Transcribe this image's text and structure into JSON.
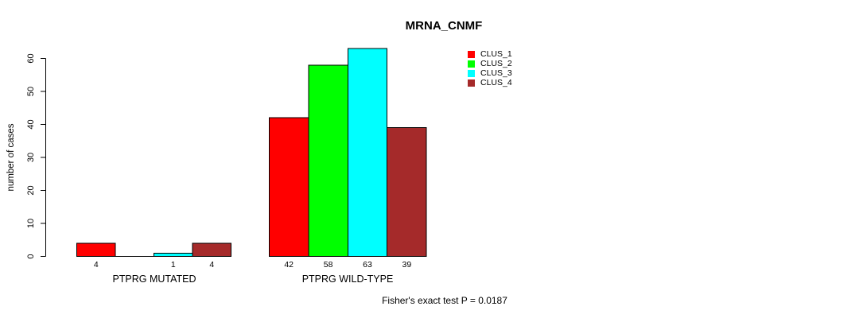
{
  "chart_data": {
    "type": "bar",
    "title": "MRNA_CNMF",
    "ylabel": "number of cases",
    "xlabel": "",
    "ylim": [
      0,
      60
    ],
    "yticks": [
      0,
      10,
      20,
      30,
      40,
      50,
      60
    ],
    "grid": false,
    "categories": [
      "PTPRG MUTATED",
      "PTPRG WILD-TYPE"
    ],
    "series": [
      {
        "name": "CLUS_1",
        "color": "#ff0000",
        "values": [
          4,
          42
        ]
      },
      {
        "name": "CLUS_2",
        "color": "#00ff00",
        "values": [
          0,
          58
        ]
      },
      {
        "name": "CLUS_3",
        "color": "#00ffff",
        "values": [
          1,
          63
        ]
      },
      {
        "name": "CLUS_4",
        "color": "#a52a2a",
        "values": [
          4,
          39
        ]
      }
    ],
    "bar_value_labels": [
      [
        "4",
        "",
        "1",
        "4"
      ],
      [
        "42",
        "58",
        "63",
        "39"
      ]
    ],
    "legend": {
      "position": "top-right-inside",
      "entries": [
        "CLUS_1",
        "CLUS_2",
        "CLUS_3",
        "CLUS_4"
      ]
    },
    "annotation": "Fisher's exact test P = 0.0187",
    "axis_color": "#000000",
    "text_color": "#000000",
    "background": "#ffffff"
  }
}
